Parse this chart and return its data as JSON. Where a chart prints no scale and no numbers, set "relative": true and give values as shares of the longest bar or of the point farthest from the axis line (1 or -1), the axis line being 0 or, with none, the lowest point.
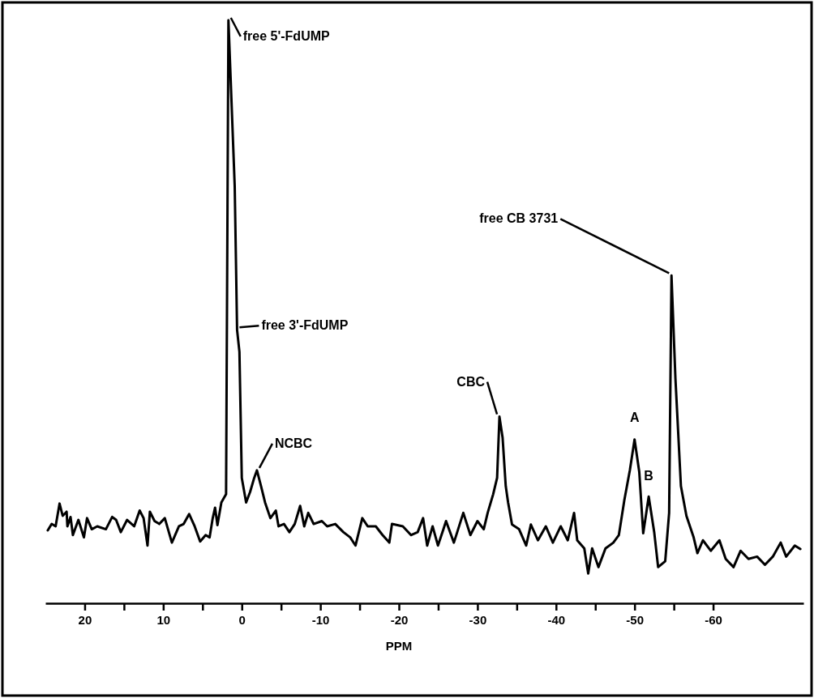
{
  "chart_data": {
    "type": "line",
    "xlabel": "PPM",
    "relative": true,
    "xlim": [
      25,
      -71.5
    ],
    "xticks": [
      20,
      {
        "value": 15,
        "label": null
      },
      10,
      {
        "value": 5,
        "label": null
      },
      0,
      {
        "value": -5,
        "label": null
      },
      -10,
      {
        "value": -15,
        "label": null
      },
      -20,
      {
        "value": -25,
        "label": null
      },
      -30,
      {
        "value": -35,
        "label": null
      },
      -40,
      {
        "value": -45,
        "label": null
      },
      -50,
      {
        "value": -55,
        "label": null
      },
      -60
    ],
    "grid": false,
    "marker": "none",
    "line_style": "solid",
    "series": [
      {
        "color": "#000000",
        "x": [
          24.7,
          24.2,
          23.7,
          23.2,
          22.8,
          22.3,
          22.2,
          21.8,
          21.5,
          20.8,
          20.1,
          19.7,
          19.1,
          18.4,
          17.3,
          16.5,
          16.0,
          15.4,
          14.6,
          13.7,
          13.0,
          12.5,
          12.0,
          11.7,
          11.1,
          10.5,
          9.8,
          8.9,
          8.0,
          7.4,
          6.7,
          6.0,
          5.3,
          4.6,
          4.1,
          3.7,
          3.4,
          3.1,
          2.6,
          2.0,
          1.7,
          0.9,
          0.6,
          0.3,
          0.0,
          -0.55,
          -1.06,
          -1.58,
          -1.93,
          -2.45,
          -2.96,
          -3.64,
          -4.33,
          -4.68,
          -5.37,
          -6.06,
          -6.74,
          -7.43,
          -7.95,
          -8.46,
          -9.15,
          -10.19,
          -10.87,
          -11.9,
          -12.93,
          -13.8,
          -14.48,
          -15.34,
          -16.03,
          -17.06,
          -17.92,
          -18.78,
          -19.12,
          -20.5,
          -21.54,
          -22.39,
          -23.08,
          -23.6,
          -24.29,
          -24.97,
          -25.67,
          -26.0,
          -27.0,
          -28.2,
          -29.1,
          -30.0,
          -30.8,
          -31.3,
          -32.0,
          -32.5,
          -32.8,
          -33.2,
          -33.6,
          -33.9,
          -34.4,
          -35.3,
          -36.2,
          -36.8,
          -37.7,
          -38.7,
          -39.6,
          -40.6,
          -41.5,
          -42.3,
          -42.7,
          -43.6,
          -44.1,
          -44.6,
          -45.4,
          -46.3,
          -47.3,
          -48.0,
          -48.7,
          -49.4,
          -50.0,
          -50.6,
          -51.1,
          -51.8,
          -52.5,
          -53.0,
          -53.9,
          -54.4,
          -54.7,
          -55.2,
          -55.9,
          -56.6,
          -57.5,
          -58.0,
          -58.7,
          -59.7,
          -60.8,
          -61.6,
          -62.6,
          -63.5,
          -64.5,
          -65.6,
          -66.6,
          -67.6,
          -68.6,
          -69.3,
          -70.4,
          -71.1
        ],
        "values": [
          0.125,
          0.136,
          0.132,
          0.171,
          0.15,
          0.157,
          0.132,
          0.148,
          0.117,
          0.143,
          0.113,
          0.146,
          0.127,
          0.132,
          0.127,
          0.148,
          0.143,
          0.122,
          0.143,
          0.132,
          0.159,
          0.146,
          0.099,
          0.157,
          0.141,
          0.136,
          0.146,
          0.104,
          0.132,
          0.136,
          0.153,
          0.132,
          0.106,
          0.117,
          0.113,
          0.146,
          0.164,
          0.134,
          0.173,
          0.187,
          1,
          0.715,
          0.469,
          0.431,
          0.215,
          0.173,
          0.191,
          0.215,
          0.228,
          0.201,
          0.173,
          0.146,
          0.159,
          0.132,
          0.136,
          0.122,
          0.136,
          0.167,
          0.132,
          0.155,
          0.136,
          0.141,
          0.132,
          0.136,
          0.122,
          0.113,
          0.099,
          0.146,
          0.132,
          0.132,
          0.117,
          0.104,
          0.136,
          0.132,
          0.117,
          0.122,
          0.146,
          0.099,
          0.132,
          0.099,
          0.127,
          0.141,
          0.104,
          0.155,
          0.117,
          0.141,
          0.127,
          0.155,
          0.187,
          0.215,
          0.32,
          0.284,
          0.201,
          0.173,
          0.135,
          0.127,
          0.099,
          0.135,
          0.108,
          0.132,
          0.104,
          0.132,
          0.108,
          0.155,
          0.108,
          0.094,
          0.051,
          0.094,
          0.062,
          0.094,
          0.104,
          0.117,
          0.177,
          0.228,
          0.281,
          0.225,
          0.12,
          0.183,
          0.122,
          0.062,
          0.072,
          0.155,
          0.562,
          0.386,
          0.201,
          0.15,
          0.114,
          0.086,
          0.108,
          0.09,
          0.108,
          0.076,
          0.062,
          0.09,
          0.076,
          0.08,
          0.066,
          0.08,
          0.104,
          0.08,
          0.099,
          0.093
        ]
      }
    ],
    "annotations": [
      {
        "text": "free 5'-FdUMP",
        "x": 1.7,
        "y": 1
      },
      {
        "text": "free 3'-FdUMP",
        "x": 0.6,
        "y": 0.469
      },
      {
        "text": "NCBC",
        "x": -1.93,
        "y": 0.228
      },
      {
        "text": "CBC",
        "x": -32.8,
        "y": 0.32
      },
      {
        "text": "A",
        "x": -50.0,
        "y": 0.281
      },
      {
        "text": "B",
        "x": -51.8,
        "y": 0.183
      },
      {
        "text": "free CB 3731",
        "x": -54.7,
        "y": 0.562
      }
    ]
  }
}
